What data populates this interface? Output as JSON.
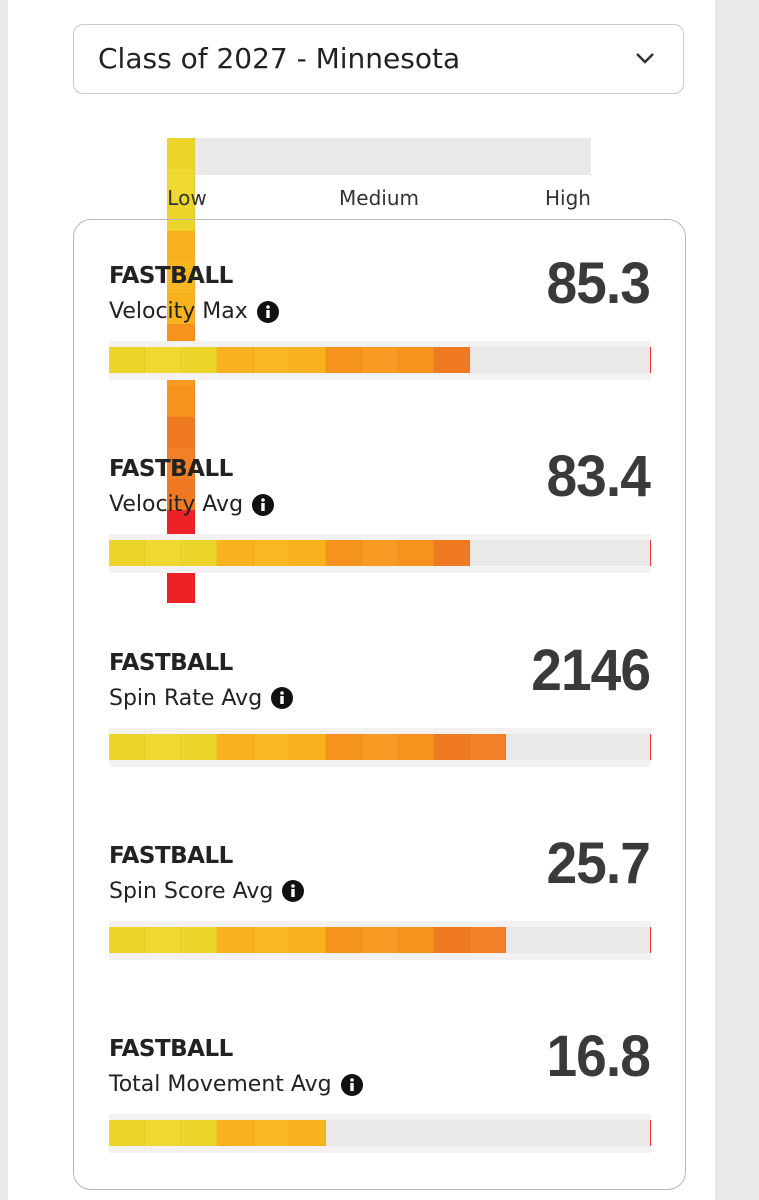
{
  "dropdown": {
    "label": "Class of 2027 - Minnesota"
  },
  "legend": {
    "low": "Low",
    "medium": "Medium",
    "high": "High"
  },
  "metrics": [
    {
      "pitch": "FASTBALL",
      "label": "Velocity Max",
      "value": "85.3",
      "filled": 10
    },
    {
      "pitch": "FASTBALL",
      "label": "Velocity Avg",
      "value": "83.4",
      "filled": 10
    },
    {
      "pitch": "FASTBALL",
      "label": "Spin Rate Avg",
      "value": "2146",
      "filled": 11
    },
    {
      "pitch": "FASTBALL",
      "label": "Spin Score Avg",
      "value": "25.7",
      "filled": 11
    },
    {
      "pitch": "FASTBALL",
      "label": "Total Movement Avg",
      "value": "16.8",
      "filled": 6
    }
  ]
}
